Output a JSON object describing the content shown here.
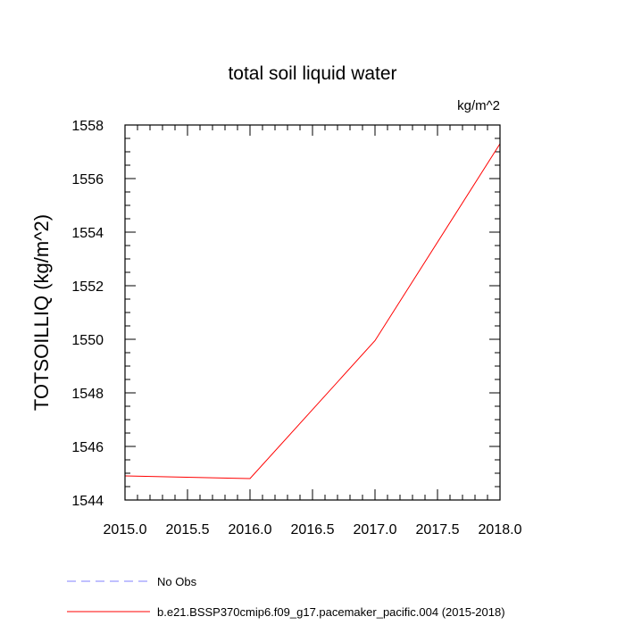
{
  "chart_data": {
    "type": "line",
    "title": "total soil liquid water",
    "units": "kg/m^2",
    "ylabel": "TOTSOILLIQ  (kg/m^2)",
    "xlabel": "",
    "xlim": [
      2015.0,
      2018.0
    ],
    "ylim": [
      1544,
      1558
    ],
    "xticks": [
      "2015.0",
      "2015.5",
      "2016.0",
      "2016.5",
      "2017.0",
      "2017.5",
      "2018.0"
    ],
    "yticks": [
      "1544",
      "1546",
      "1548",
      "1550",
      "1552",
      "1554",
      "1556",
      "1558"
    ],
    "grid": false,
    "legend_position": "bottom",
    "series": [
      {
        "name": "No Obs",
        "color": "#8080ff",
        "dash": "dashed",
        "x": [],
        "values": []
      },
      {
        "name": "b.e21.BSSP370cmip6.f09_g17.pacemaker_pacific.004 (2015-2018)",
        "color": "#ff0000",
        "dash": "solid",
        "x": [
          2015,
          2016,
          2017,
          2018
        ],
        "values": [
          1544.9,
          1544.8,
          1549.95,
          1557.3
        ]
      }
    ]
  }
}
